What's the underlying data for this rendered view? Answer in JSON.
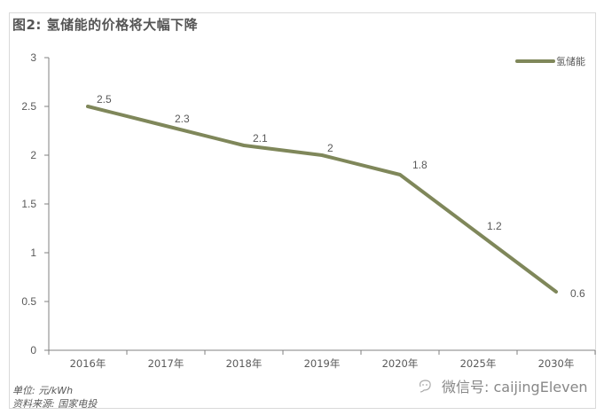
{
  "figure": {
    "title": "图2: 氢储能的价格将大幅下降",
    "unit_note": "单位: 元/kWh",
    "source_note": "资料来源: 国家电投",
    "watermark": "微信号: caijingEleven",
    "watermark_icon": "wechat-icon",
    "line_color": "#7F875A"
  },
  "chart_data": {
    "type": "line",
    "title": "图2: 氢储能的价格将大幅下降",
    "xlabel": "",
    "ylabel": "单位: 元/kWh",
    "categories": [
      "2016年",
      "2017年",
      "2018年",
      "2019年",
      "2020年",
      "2025年",
      "2030年"
    ],
    "series": [
      {
        "name": "氢储能",
        "values": [
          2.5,
          2.3,
          2.1,
          2,
          1.8,
          1.2,
          0.6
        ]
      }
    ],
    "data_labels": [
      "2.5",
      "2.3",
      "2.1",
      "2",
      "1.8",
      "1.2",
      "0.6"
    ],
    "ylim": [
      0,
      3
    ],
    "yticks": [
      "0",
      "0.5",
      "1",
      "1.5",
      "2",
      "2.5",
      "3"
    ],
    "grid": false,
    "legend_position": "top-right"
  }
}
